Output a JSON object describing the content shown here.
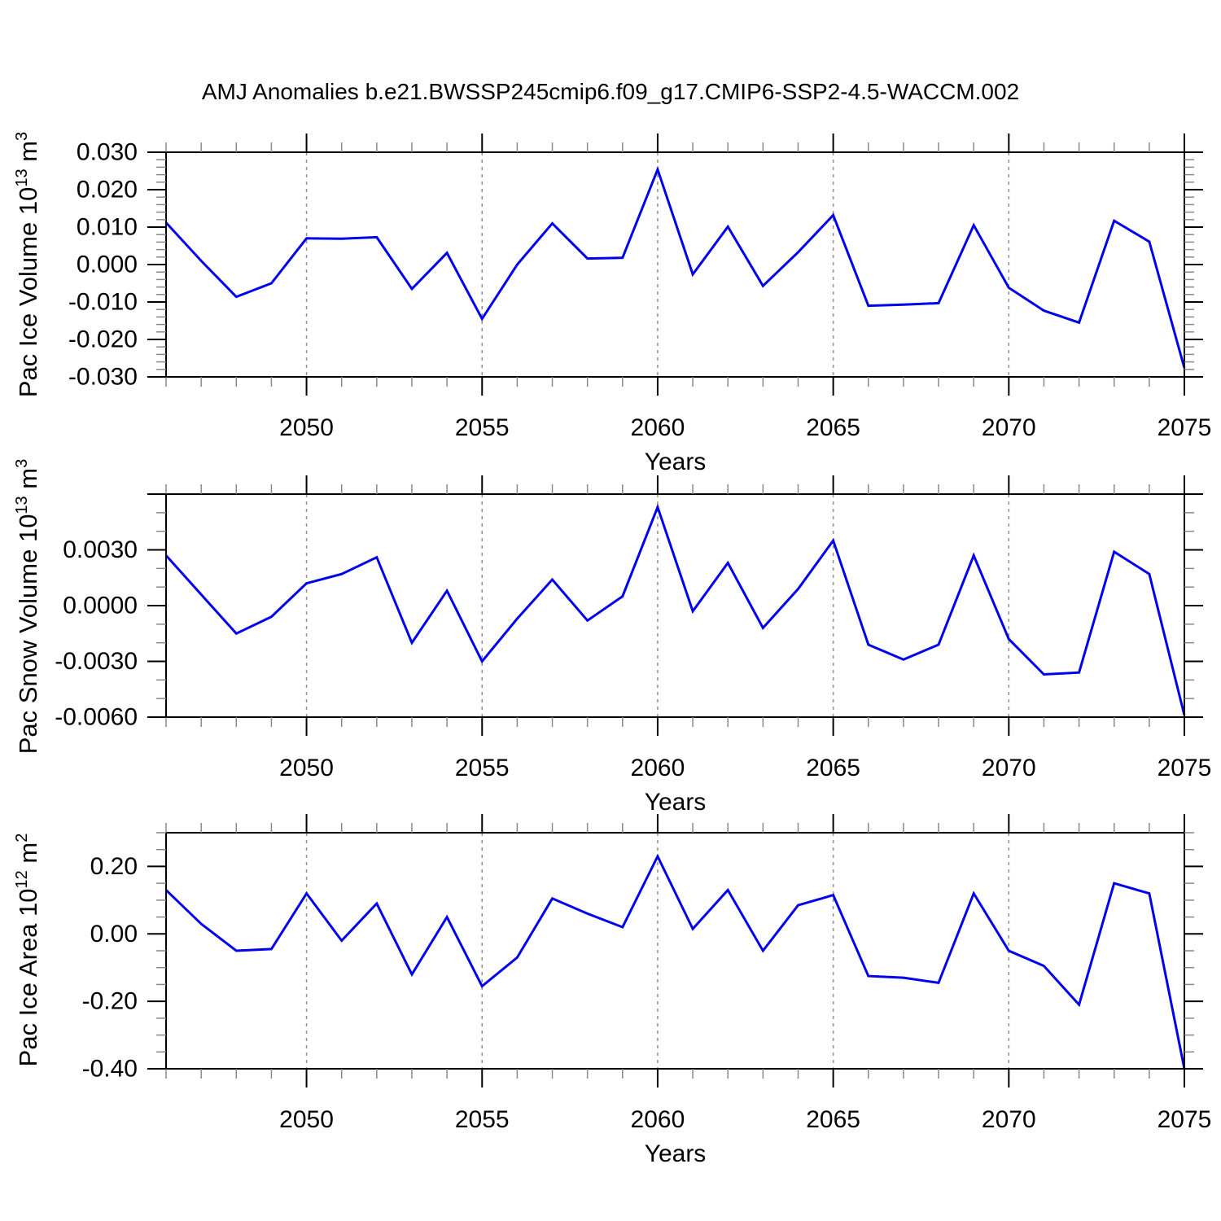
{
  "title": "AMJ Anomalies b.e21.BWSSP245cmip6.f09_g17.CMIP6-SSP2-4.5-WACCM.002",
  "colors": {
    "line": "#0000EE",
    "grid": "#909090",
    "axis": "#000000",
    "minor_tick": "#888888"
  },
  "chart_data": [
    {
      "id": "pac-ice-volume",
      "type": "line",
      "ylabel": "Pac Ice Volume 10^13 m^3",
      "ylabel_parts": {
        "prefix": "Pac Ice Volume 10",
        "sup1": "13",
        "mid": " m",
        "sup2": "3"
      },
      "xlabel": "Years",
      "xlim": [
        2046,
        2075
      ],
      "ylim": [
        -0.03,
        0.03
      ],
      "x": [
        2046,
        2047,
        2048,
        2049,
        2050,
        2051,
        2052,
        2053,
        2054,
        2055,
        2056,
        2057,
        2058,
        2059,
        2060,
        2061,
        2062,
        2063,
        2064,
        2065,
        2066,
        2067,
        2068,
        2069,
        2070,
        2071,
        2072,
        2073,
        2074,
        2075
      ],
      "values": [
        0.0112,
        0.001,
        -0.0086,
        -0.005,
        0.007,
        0.0069,
        0.0073,
        -0.0065,
        0.0031,
        -0.0145,
        0.0,
        0.011,
        0.0016,
        0.0018,
        0.0254,
        -0.0026,
        0.0101,
        -0.0057,
        0.0033,
        0.0132,
        -0.011,
        -0.0107,
        -0.0103,
        0.0105,
        -0.0062,
        -0.0123,
        -0.0155,
        0.0117,
        0.0061,
        -0.0276
      ],
      "xticks": [
        2050,
        2055,
        2060,
        2065,
        2070,
        2075
      ],
      "xtick_labels": [
        "2050",
        "2055",
        "2060",
        "2065",
        "2070",
        "2075"
      ],
      "xminor_step": 1,
      "yticks": [
        0.03,
        0.02,
        0.01,
        0.0,
        -0.01,
        -0.02,
        -0.03
      ],
      "ytick_labels": [
        "0.030",
        "0.020",
        "0.010",
        "0.000",
        "-0.010",
        "-0.020",
        "-0.030"
      ],
      "ymajors": [
        0.03,
        0.02,
        0.01,
        0.0,
        -0.01,
        -0.02,
        -0.03
      ],
      "yminor_step": 0.002,
      "grid_x": [
        2050,
        2055,
        2060,
        2065,
        2070
      ],
      "legend": "none",
      "grid": "vertical-dashed"
    },
    {
      "id": "pac-snow-volume",
      "type": "line",
      "ylabel": "Pac Snow Volume 10^13 m^3",
      "ylabel_parts": {
        "prefix": "Pac Snow Volume 10",
        "sup1": "13",
        "mid": " m",
        "sup2": "3"
      },
      "xlabel": "Years",
      "xlim": [
        2046,
        2075
      ],
      "ylim": [
        -0.006,
        0.006
      ],
      "x": [
        2046,
        2047,
        2048,
        2049,
        2050,
        2051,
        2052,
        2053,
        2054,
        2055,
        2056,
        2057,
        2058,
        2059,
        2060,
        2061,
        2062,
        2063,
        2064,
        2065,
        2066,
        2067,
        2068,
        2069,
        2070,
        2071,
        2072,
        2073,
        2074,
        2075
      ],
      "values": [
        0.0027,
        0.0006,
        -0.0015,
        -0.0006,
        0.0012,
        0.0017,
        0.0026,
        -0.002,
        0.0008,
        -0.003,
        -0.0007,
        0.0014,
        -0.0008,
        0.0005,
        0.0053,
        -0.0003,
        0.0023,
        -0.0012,
        0.0009,
        0.0035,
        -0.0021,
        -0.0029,
        -0.0021,
        0.0027,
        -0.0018,
        -0.0037,
        -0.0036,
        0.0029,
        0.0017,
        -0.0059
      ],
      "xticks": [
        2050,
        2055,
        2060,
        2065,
        2070,
        2075
      ],
      "xtick_labels": [
        "2050",
        "2055",
        "2060",
        "2065",
        "2070",
        "2075"
      ],
      "xminor_step": 1,
      "yticks": [
        0.003,
        0.0,
        -0.003,
        -0.006
      ],
      "ytick_labels": [
        "0.0030",
        "0.0000",
        "-0.0030",
        "-0.0060"
      ],
      "ymajors": [
        0.006,
        0.003,
        0.0,
        -0.003,
        -0.006
      ],
      "yminor_step": 0.001,
      "grid_x": [
        2050,
        2055,
        2060,
        2065,
        2070
      ],
      "legend": "none",
      "grid": "vertical-dashed"
    },
    {
      "id": "pac-ice-area",
      "type": "line",
      "ylabel": "Pac Ice Area 10^12 m^2",
      "ylabel_parts": {
        "prefix": "Pac Ice Area 10",
        "sup1": "12",
        "mid": " m",
        "sup2": "2"
      },
      "xlabel": "Years",
      "xlim": [
        2046,
        2075
      ],
      "ylim": [
        -0.4,
        0.3
      ],
      "x": [
        2046,
        2047,
        2048,
        2049,
        2050,
        2051,
        2052,
        2053,
        2054,
        2055,
        2056,
        2057,
        2058,
        2059,
        2060,
        2061,
        2062,
        2063,
        2064,
        2065,
        2066,
        2067,
        2068,
        2069,
        2070,
        2071,
        2072,
        2073,
        2074,
        2075
      ],
      "values": [
        0.13,
        0.03,
        -0.05,
        -0.045,
        0.12,
        -0.02,
        0.09,
        -0.12,
        0.05,
        -0.155,
        -0.07,
        0.105,
        0.06,
        0.02,
        0.23,
        0.015,
        0.13,
        -0.05,
        0.085,
        0.115,
        -0.125,
        -0.13,
        -0.145,
        0.12,
        -0.05,
        -0.095,
        -0.21,
        0.15,
        0.12,
        -0.4
      ],
      "xticks": [
        2050,
        2055,
        2060,
        2065,
        2070,
        2075
      ],
      "xtick_labels": [
        "2050",
        "2055",
        "2060",
        "2065",
        "2070",
        "2075"
      ],
      "xminor_step": 1,
      "yticks": [
        0.2,
        0.0,
        -0.2,
        -0.4
      ],
      "ytick_labels": [
        "0.20",
        "0.00",
        "-0.20",
        "-0.40"
      ],
      "ymajors": [
        0.2,
        0.0,
        -0.2,
        -0.4
      ],
      "yminor_step": 0.05,
      "grid_x": [
        2050,
        2055,
        2060,
        2065,
        2070
      ],
      "legend": "none",
      "grid": "vertical-dashed"
    }
  ]
}
